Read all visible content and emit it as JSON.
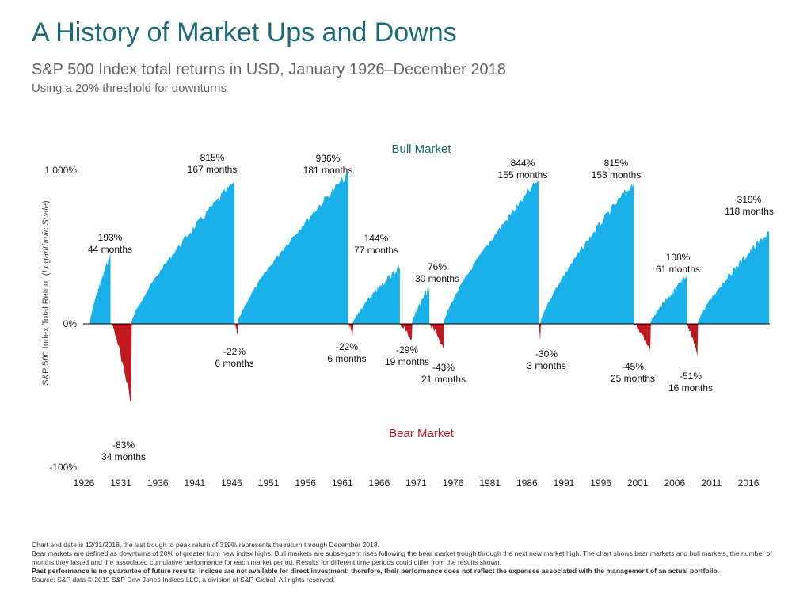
{
  "chart_data": {
    "type": "area",
    "title": "A History of Market Ups and Downs",
    "subtitle": "S&P 500 Index total returns in USD, January 1926–December 2018",
    "subtitle2": "Using a 20% threshold for downturns",
    "ylabel_prefix": "S&P 500 Index Total Return (",
    "ylabel_italic": "Logarithmic Scale",
    "ylabel_suffix": ")",
    "y_scale": "log",
    "y_ticks": [
      {
        "label": "1,000%",
        "value": 1000
      },
      {
        "label": "0%",
        "value": 0
      },
      {
        "label": "-100%",
        "value": -100
      }
    ],
    "x_ticks": [
      "1926",
      "1931",
      "1936",
      "1941",
      "1946",
      "1951",
      "1956",
      "1961",
      "1966",
      "1971",
      "1976",
      "1981",
      "1986",
      "1991",
      "1996",
      "2001",
      "2006",
      "2011",
      "2016"
    ],
    "bull_label": "Bull Market",
    "bear_label": "Bear Market",
    "colors": {
      "bull": "#1ab0ea",
      "bear": "#c0191f",
      "bull_text": "#1b6a7a",
      "bear_text": "#c0191f",
      "title": "#1b6a7a"
    },
    "bull_markets": [
      {
        "start": 1926.9,
        "end": 1929.7,
        "return_pct": 193,
        "months": 44,
        "return_label": "193%",
        "months_label": "44 months"
      },
      {
        "start": 1932.5,
        "end": 1946.5,
        "return_pct": 815,
        "months": 167,
        "return_label": "815%",
        "months_label": "167 months"
      },
      {
        "start": 1946.9,
        "end": 1961.9,
        "return_pct": 936,
        "months": 181,
        "return_label": "936%",
        "months_label": "181 months"
      },
      {
        "start": 1962.5,
        "end": 1968.9,
        "return_pct": 144,
        "months": 77,
        "return_label": "144%",
        "months_label": "77 months"
      },
      {
        "start": 1970.5,
        "end": 1972.9,
        "return_pct": 76,
        "months": 30,
        "return_label": "76%",
        "months_label": "30 months"
      },
      {
        "start": 1974.8,
        "end": 1987.7,
        "return_pct": 844,
        "months": 155,
        "return_label": "844%",
        "months_label": "155 months"
      },
      {
        "start": 1987.9,
        "end": 2000.6,
        "return_pct": 815,
        "months": 153,
        "return_label": "815%",
        "months_label": "153 months"
      },
      {
        "start": 2002.8,
        "end": 2007.8,
        "return_pct": 108,
        "months": 61,
        "return_label": "108%",
        "months_label": "61 months"
      },
      {
        "start": 2009.2,
        "end": 2018.9,
        "return_pct": 319,
        "months": 118,
        "return_label": "319%",
        "months_label": "118 months"
      }
    ],
    "bear_markets": [
      {
        "start": 1929.7,
        "end": 1932.5,
        "return_pct": -83,
        "months": 34,
        "return_label": "-83%",
        "months_label": "34 months"
      },
      {
        "start": 1946.5,
        "end": 1946.9,
        "return_pct": -22,
        "months": 6,
        "return_label": "-22%",
        "months_label": "6 months"
      },
      {
        "start": 1961.9,
        "end": 1962.5,
        "return_pct": -22,
        "months": 6,
        "return_label": "-22%",
        "months_label": "6 months"
      },
      {
        "start": 1968.9,
        "end": 1970.5,
        "return_pct": -29,
        "months": 19,
        "return_label": "-29%",
        "months_label": "19 months"
      },
      {
        "start": 1972.9,
        "end": 1974.8,
        "return_pct": -43,
        "months": 21,
        "return_label": "-43%",
        "months_label": "21 months"
      },
      {
        "start": 1987.7,
        "end": 1987.9,
        "return_pct": -30,
        "months": 3,
        "return_label": "-30%",
        "months_label": "3 months"
      },
      {
        "start": 2000.6,
        "end": 2002.8,
        "return_pct": -45,
        "months": 25,
        "return_label": "-45%",
        "months_label": "25 months"
      },
      {
        "start": 2007.8,
        "end": 2009.2,
        "return_pct": -51,
        "months": 16,
        "return_label": "-51%",
        "months_label": "16 months"
      }
    ]
  },
  "footer": {
    "line1": "Chart end date is 12/31/2018, the last trough to peak return of 319% represents the return through December 2018.",
    "line2": "Bear markets are defined as downturns of 20% of greater from new index highs. Bull markets are subsequent rises following the bear market trough through the next new market high. The chart shows bear markets and bull markets, the number of months they lasted and the associated cumulative performance for each market period. Results for different time periods could differ from the results shown.",
    "line3": "Past performance is no guarantee of future results. Indices are not available for direct investment; therefore, their performance does not reflect the expenses associated with the management of an actual portfolio.",
    "line4": "Source: S&P data © 2019 S&P Dow Jones Indices LLC, a division of S&P Global. All rights reserved."
  }
}
